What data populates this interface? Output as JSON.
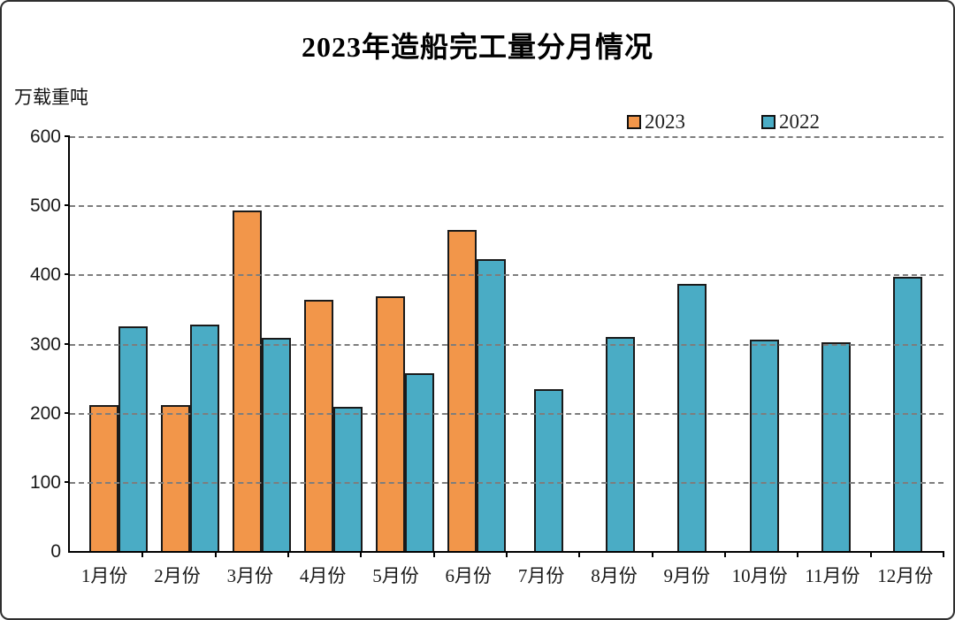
{
  "title": "2023年造船完工量分月情况",
  "unit_label": "万载重吨",
  "legend": {
    "items": [
      {
        "label": "2023",
        "color": "#F2964A"
      },
      {
        "label": "2022",
        "color": "#4AACC5"
      }
    ]
  },
  "chart_data": {
    "type": "bar",
    "title": "2023年造船完工量分月情况",
    "xlabel": "",
    "ylabel": "万载重吨",
    "categories": [
      "1月份",
      "2月份",
      "3月份",
      "4月份",
      "5月份",
      "6月份",
      "7月份",
      "8月份",
      "9月份",
      "10月份",
      "11月份",
      "12月份"
    ],
    "series": [
      {
        "name": "2023",
        "color": "#F2964A",
        "values": [
          211,
          211,
          493,
          363,
          368,
          465,
          null,
          null,
          null,
          null,
          null,
          null
        ]
      },
      {
        "name": "2022",
        "color": "#4AACC5",
        "values": [
          325,
          327,
          308,
          209,
          257,
          422,
          234,
          309,
          386,
          306,
          302,
          397
        ]
      }
    ],
    "ylim": [
      0,
      600
    ],
    "yticks": [
      0,
      100,
      200,
      300,
      400,
      500,
      600
    ],
    "grid": "horizontal-dashed",
    "gridline_color": "#7d7d7d",
    "bar_border_color": "#1a1a1a",
    "legend_position": "top-right"
  }
}
